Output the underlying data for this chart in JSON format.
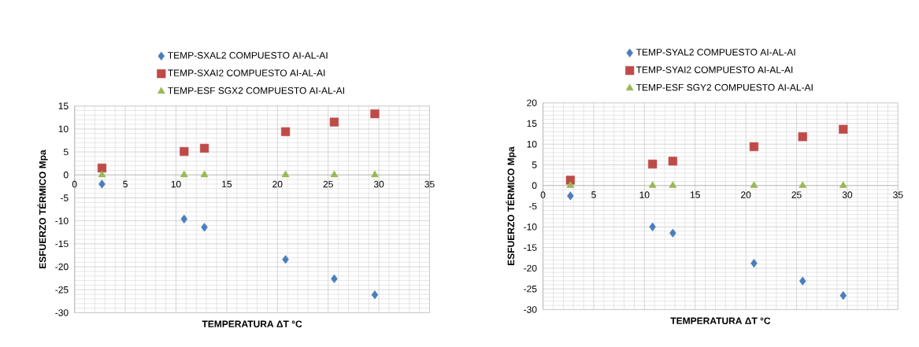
{
  "chart_data": [
    {
      "type": "scatter",
      "xlabel": "TEMPERATURA  ΔT  °C",
      "ylabel": "ESFUERZO TÉRMICO  Mpa",
      "xlim": [
        0,
        35
      ],
      "ylim": [
        -30,
        15
      ],
      "xticks": [
        0,
        5,
        10,
        15,
        20,
        25,
        30,
        35
      ],
      "yticks": [
        -30,
        -25,
        -20,
        -15,
        -10,
        -5,
        0,
        5,
        10,
        15
      ],
      "grid": true,
      "legend": "top",
      "series": [
        {
          "name": "TEMP-SXAL2 COMPUESTO AI-AL-AI",
          "color": "#4a7ebb",
          "marker": "diamond",
          "x": [
            2.7,
            10.8,
            12.8,
            20.8,
            25.6,
            29.6
          ],
          "values": [
            -2,
            -9.6,
            -11.4,
            -18.4,
            -22.6,
            -26.1
          ]
        },
        {
          "name": "TEMP-SXAI2 COMPUESTO AI-AL-AI",
          "color": "#be4b48",
          "marker": "square",
          "x": [
            2.7,
            10.8,
            12.8,
            20.8,
            25.6,
            29.6
          ],
          "values": [
            1.5,
            5.1,
            5.8,
            9.4,
            11.5,
            13.3
          ]
        },
        {
          "name": "TEMP-ESF SGX2 COMPUESTO AI-AL-AI",
          "color": "#98b954",
          "marker": "triangle",
          "x": [
            2.7,
            10.8,
            12.8,
            20.8,
            25.6,
            29.6
          ],
          "values": [
            0,
            0,
            0,
            0,
            0,
            0
          ]
        }
      ]
    },
    {
      "type": "scatter",
      "xlabel": "TEMPERATURA  ΔT  °C",
      "ylabel": "ESFUERZO TÉRMICO  Mpa",
      "xlim": [
        0,
        35
      ],
      "ylim": [
        -30,
        20
      ],
      "xticks": [
        0,
        5,
        10,
        15,
        20,
        25,
        30,
        35
      ],
      "yticks": [
        -30,
        -25,
        -20,
        -15,
        -10,
        -5,
        0,
        5,
        10,
        15,
        20
      ],
      "grid": true,
      "legend": "top",
      "series": [
        {
          "name": "TEMP-SYAL2 COMPUESTO AI-AL-AI",
          "color": "#4a7ebb",
          "marker": "diamond",
          "x": [
            2.7,
            10.8,
            12.8,
            20.8,
            25.6,
            29.6
          ],
          "values": [
            -2.5,
            -10,
            -11.5,
            -18.8,
            -23.1,
            -26.6
          ]
        },
        {
          "name": "TEMP-SYAI2 COMPUESTO AI-AL-AI",
          "color": "#be4b48",
          "marker": "square",
          "x": [
            2.7,
            10.8,
            12.8,
            20.8,
            25.6,
            29.6
          ],
          "values": [
            1.3,
            5.2,
            5.9,
            9.4,
            11.8,
            13.6
          ]
        },
        {
          "name": "TEMP-ESF SGY2 COMPUESTO AI-AL-AI",
          "color": "#98b954",
          "marker": "triangle",
          "x": [
            2.7,
            10.8,
            12.8,
            20.8,
            25.6,
            29.6
          ],
          "values": [
            0,
            0,
            0,
            0,
            0,
            0
          ]
        }
      ]
    }
  ]
}
